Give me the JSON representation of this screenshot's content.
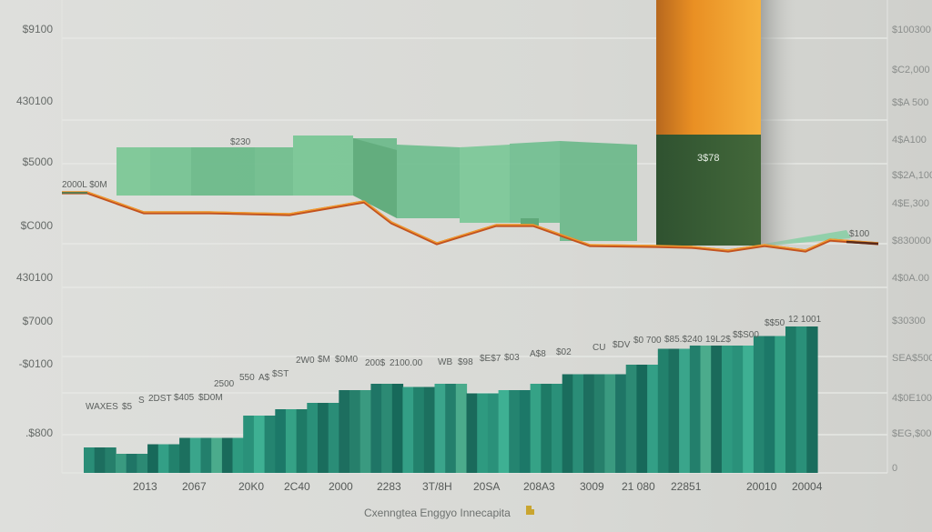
{
  "chart_data": {
    "type": "bar",
    "title": "",
    "xlabel": "Cxenngtea Enggyo Innecapita",
    "xlabel_icon": "hand-pointer-icon",
    "ylabel": "",
    "grid": true,
    "left_ytick_labels": [
      "$9100",
      "430100",
      "$5000",
      "$C000",
      "430100",
      "$7000",
      "-$0100",
      ".$800"
    ],
    "right_ytick_labels": [
      "$100300",
      "$C2,000",
      "$$A 500",
      "4$A100",
      "$$2A,100",
      "4$E,300",
      "$830000",
      "4$0A.00",
      "$30300",
      "SEA$500",
      "4$0E100",
      "$EG,$00",
      "0"
    ],
    "xtick_labels": [
      "2013",
      "2067",
      "20K0",
      "2C40",
      "2000",
      "2283",
      "3T/8H",
      "20SA",
      "208A3",
      "3009",
      "21 080",
      "22851",
      "20010",
      "20004"
    ],
    "ylim": [
      0,
      100
    ],
    "series": [
      {
        "name": "teal-bars",
        "kind": "bar",
        "color": "#1f8a74",
        "values": [
          48,
          46,
          49,
          51,
          51,
          58,
          60,
          62,
          66,
          68,
          67,
          68,
          65,
          66,
          68,
          71,
          71,
          74,
          79,
          80,
          80,
          83,
          86
        ]
      },
      {
        "name": "green-band",
        "kind": "area",
        "color": "#74c191",
        "values": [
          0,
          77,
          77,
          77,
          80,
          80,
          72,
          69,
          70,
          74,
          74,
          62,
          0,
          20,
          22
        ]
      },
      {
        "name": "highlight-bar",
        "kind": "bar",
        "dark_color": "#3a5f35",
        "orange_color": "#f09a2a",
        "dark_value": 74,
        "total_value": 140
      },
      {
        "name": "trend-line",
        "kind": "line",
        "color": "#e8732e",
        "values": [
          58,
          58,
          40,
          40,
          40,
          40,
          39,
          54,
          33,
          42,
          42,
          31,
          31,
          28,
          31,
          27,
          34,
          36
        ]
      }
    ],
    "data_labels_top": [
      "WAXES",
      "$5",
      "S",
      "2DST",
      "$405",
      "$D0M",
      "2500",
      "550",
      "A$",
      "$ST",
      "2W0",
      "$M",
      "$0M0",
      "200$",
      "2100.00",
      "WB",
      "$98",
      "$E$7",
      "$03",
      "A$8",
      "$02",
      "CU",
      "$DV",
      "$0 700",
      "$85.$240",
      "19L2$",
      "$$S00",
      "$$50",
      "12 1001"
    ],
    "data_labels_upper": [
      "2000L $0M",
      "$230",
      "3$78",
      "$100"
    ]
  }
}
